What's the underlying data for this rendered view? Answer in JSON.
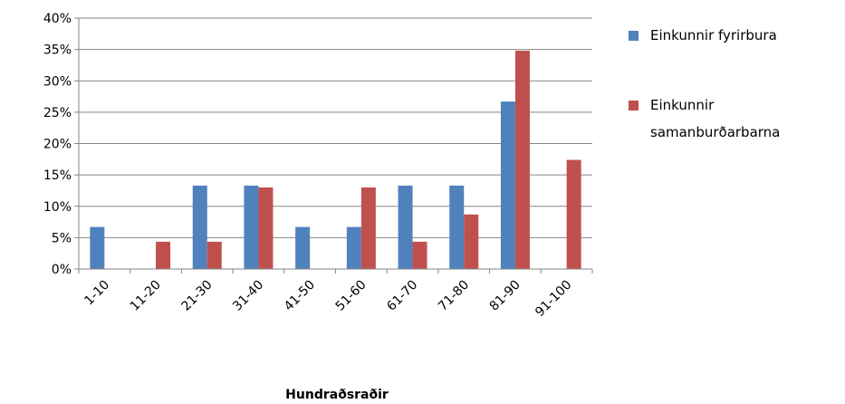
{
  "chart_data": {
    "type": "bar",
    "categories": [
      "1-10",
      "11-20",
      "21-30",
      "31-40",
      "41-50",
      "51-60",
      "61-70",
      "71-80",
      "81-90",
      "91-100"
    ],
    "series": [
      {
        "name": "Einkunnir fyrirbura",
        "color": "#4F81BD",
        "values": [
          6.7,
          0,
          13.3,
          13.3,
          6.7,
          6.7,
          13.3,
          13.3,
          26.7,
          0
        ]
      },
      {
        "name": "Einkunnir samanburðarbarna",
        "color": "#C0504D",
        "values": [
          0,
          4.35,
          4.35,
          13.0,
          0,
          13.0,
          4.35,
          8.7,
          34.8,
          17.4
        ]
      }
    ],
    "xlabel": "Hundraðsraðir",
    "ylabel": "",
    "ylim": [
      0,
      40
    ],
    "yticks": [
      "0%",
      "5%",
      "10%",
      "15%",
      "20%",
      "25%",
      "30%",
      "35%",
      "40%"
    ],
    "legend_lines": [
      [
        "Einkunnir fyrirbura"
      ],
      [
        "Einkunnir",
        "samanburðarbarna"
      ]
    ],
    "grid": true,
    "legend_position": "right"
  }
}
